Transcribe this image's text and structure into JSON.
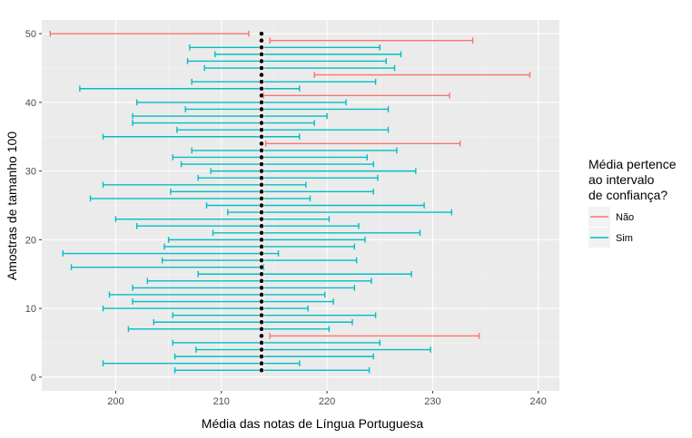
{
  "chart_data": {
    "type": "errorbar",
    "xlabel": "Média das notas de Língua Portuguesa",
    "ylabel": "Amostras de tamanho 100",
    "xlim": [
      193,
      242
    ],
    "ylim": [
      -2,
      52
    ],
    "xticks": [
      200,
      210,
      220,
      230,
      240
    ],
    "yticks": [
      0,
      10,
      20,
      30,
      40,
      50
    ],
    "reference_mean": 213.8,
    "background": "#ebebeb",
    "grid": true,
    "legend": {
      "title_lines": [
        "Média pertence",
        "ao intervalo",
        "de confiança?"
      ],
      "position": "right",
      "entries": [
        {
          "label": "Não",
          "color": "#f8766d"
        },
        {
          "label": "Sim",
          "color": "#00bfc4"
        }
      ]
    },
    "samples": [
      {
        "y": 1,
        "mean": 213.8,
        "low": 205.6,
        "high": 224.0,
        "in_ci": "Sim"
      },
      {
        "y": 2,
        "mean": 213.8,
        "low": 198.8,
        "high": 217.4,
        "in_ci": "Sim"
      },
      {
        "y": 3,
        "mean": 213.8,
        "low": 205.6,
        "high": 224.4,
        "in_ci": "Sim"
      },
      {
        "y": 4,
        "mean": 213.8,
        "low": 207.6,
        "high": 229.8,
        "in_ci": "Sim"
      },
      {
        "y": 5,
        "mean": 213.8,
        "low": 205.4,
        "high": 225.0,
        "in_ci": "Sim"
      },
      {
        "y": 6,
        "mean": 213.8,
        "low": 214.6,
        "high": 234.4,
        "in_ci": "Não"
      },
      {
        "y": 7,
        "mean": 213.8,
        "low": 201.2,
        "high": 220.2,
        "in_ci": "Sim"
      },
      {
        "y": 8,
        "mean": 213.8,
        "low": 203.6,
        "high": 222.4,
        "in_ci": "Sim"
      },
      {
        "y": 9,
        "mean": 213.8,
        "low": 205.4,
        "high": 224.6,
        "in_ci": "Sim"
      },
      {
        "y": 10,
        "mean": 213.8,
        "low": 198.8,
        "high": 218.2,
        "in_ci": "Sim"
      },
      {
        "y": 11,
        "mean": 213.8,
        "low": 201.6,
        "high": 220.6,
        "in_ci": "Sim"
      },
      {
        "y": 12,
        "mean": 213.8,
        "low": 199.4,
        "high": 219.8,
        "in_ci": "Sim"
      },
      {
        "y": 13,
        "mean": 213.8,
        "low": 201.6,
        "high": 222.6,
        "in_ci": "Sim"
      },
      {
        "y": 14,
        "mean": 213.8,
        "low": 203.0,
        "high": 224.2,
        "in_ci": "Sim"
      },
      {
        "y": 15,
        "mean": 213.8,
        "low": 207.8,
        "high": 228.0,
        "in_ci": "Sim"
      },
      {
        "y": 16,
        "mean": 213.8,
        "low": 195.8,
        "high": 214.0,
        "in_ci": "Sim"
      },
      {
        "y": 17,
        "mean": 213.8,
        "low": 204.4,
        "high": 222.8,
        "in_ci": "Sim"
      },
      {
        "y": 18,
        "mean": 213.8,
        "low": 195.0,
        "high": 215.4,
        "in_ci": "Sim"
      },
      {
        "y": 19,
        "mean": 213.8,
        "low": 204.6,
        "high": 222.6,
        "in_ci": "Sim"
      },
      {
        "y": 20,
        "mean": 213.8,
        "low": 205.0,
        "high": 223.6,
        "in_ci": "Sim"
      },
      {
        "y": 21,
        "mean": 213.8,
        "low": 209.2,
        "high": 228.8,
        "in_ci": "Sim"
      },
      {
        "y": 22,
        "mean": 213.8,
        "low": 202.0,
        "high": 223.0,
        "in_ci": "Sim"
      },
      {
        "y": 23,
        "mean": 213.8,
        "low": 200.0,
        "high": 220.2,
        "in_ci": "Sim"
      },
      {
        "y": 24,
        "mean": 213.8,
        "low": 210.6,
        "high": 231.8,
        "in_ci": "Sim"
      },
      {
        "y": 25,
        "mean": 213.8,
        "low": 208.6,
        "high": 229.2,
        "in_ci": "Sim"
      },
      {
        "y": 26,
        "mean": 213.8,
        "low": 197.6,
        "high": 218.4,
        "in_ci": "Sim"
      },
      {
        "y": 27,
        "mean": 213.8,
        "low": 205.2,
        "high": 224.4,
        "in_ci": "Sim"
      },
      {
        "y": 28,
        "mean": 213.8,
        "low": 198.8,
        "high": 218.0,
        "in_ci": "Sim"
      },
      {
        "y": 29,
        "mean": 213.8,
        "low": 207.8,
        "high": 224.8,
        "in_ci": "Sim"
      },
      {
        "y": 30,
        "mean": 213.8,
        "low": 209.0,
        "high": 228.4,
        "in_ci": "Sim"
      },
      {
        "y": 31,
        "mean": 213.8,
        "low": 206.2,
        "high": 224.4,
        "in_ci": "Sim"
      },
      {
        "y": 32,
        "mean": 213.8,
        "low": 205.4,
        "high": 223.8,
        "in_ci": "Sim"
      },
      {
        "y": 33,
        "mean": 213.8,
        "low": 207.2,
        "high": 226.6,
        "in_ci": "Sim"
      },
      {
        "y": 34,
        "mean": 213.8,
        "low": 214.2,
        "high": 232.6,
        "in_ci": "Não"
      },
      {
        "y": 35,
        "mean": 213.8,
        "low": 198.8,
        "high": 217.4,
        "in_ci": "Sim"
      },
      {
        "y": 36,
        "mean": 213.8,
        "low": 205.8,
        "high": 225.8,
        "in_ci": "Sim"
      },
      {
        "y": 37,
        "mean": 213.8,
        "low": 201.6,
        "high": 218.8,
        "in_ci": "Sim"
      },
      {
        "y": 38,
        "mean": 213.8,
        "low": 201.6,
        "high": 220.0,
        "in_ci": "Sim"
      },
      {
        "y": 39,
        "mean": 213.8,
        "low": 206.6,
        "high": 225.8,
        "in_ci": "Sim"
      },
      {
        "y": 40,
        "mean": 213.8,
        "low": 202.0,
        "high": 221.8,
        "in_ci": "Sim"
      },
      {
        "y": 41,
        "mean": 213.8,
        "low": 214.0,
        "high": 231.6,
        "in_ci": "Não"
      },
      {
        "y": 42,
        "mean": 213.8,
        "low": 196.6,
        "high": 217.4,
        "in_ci": "Sim"
      },
      {
        "y": 43,
        "mean": 213.8,
        "low": 207.2,
        "high": 224.6,
        "in_ci": "Sim"
      },
      {
        "y": 44,
        "mean": 213.8,
        "low": 218.8,
        "high": 239.2,
        "in_ci": "Não"
      },
      {
        "y": 45,
        "mean": 213.8,
        "low": 208.4,
        "high": 226.4,
        "in_ci": "Sim"
      },
      {
        "y": 46,
        "mean": 213.8,
        "low": 206.8,
        "high": 225.6,
        "in_ci": "Sim"
      },
      {
        "y": 47,
        "mean": 213.8,
        "low": 209.4,
        "high": 227.0,
        "in_ci": "Sim"
      },
      {
        "y": 48,
        "mean": 213.8,
        "low": 207.0,
        "high": 225.0,
        "in_ci": "Sim"
      },
      {
        "y": 49,
        "mean": 213.8,
        "low": 214.6,
        "high": 233.8,
        "in_ci": "Não"
      },
      {
        "y": 50,
        "mean": 213.8,
        "low": 193.8,
        "high": 212.6,
        "in_ci": "Não"
      }
    ]
  }
}
